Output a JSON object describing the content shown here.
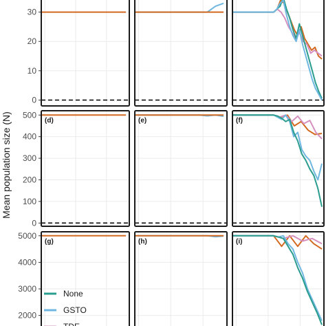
{
  "chart_data": {
    "type": "line",
    "ylabel": "Mean population size (N)",
    "reference_line": 0,
    "legend": {
      "placement": "bottom-left",
      "entries": [
        {
          "name": "None",
          "color": "#2a9d8f"
        },
        {
          "name": "GSTO",
          "color": "#6fb7e0"
        },
        {
          "name": "TDE",
          "color": "#d58fbf"
        }
      ]
    },
    "colors": {
      "None": "#2a9d8f",
      "GSTO": "#6fb7e0",
      "TDE": "#d58fbf",
      "Other": "#d2691e",
      "reference": "#000000",
      "grid": "#ebebeb"
    },
    "rows": [
      {
        "ylim": [
          -2,
          36
        ],
        "yticks": [
          0,
          10,
          20,
          30
        ],
        "panels": [
          {
            "label": "",
            "series": [
              {
                "name": "",
                "color": "#d2691e",
                "values": [
                  30,
                  30,
                  30,
                  30,
                  30,
                  30,
                  30,
                  30,
                  30,
                  30,
                  30,
                  30
                ]
              }
            ]
          },
          {
            "label": "",
            "series": [
              {
                "name": "GSTO",
                "color": "#6fb7e0",
                "values": [
                  30,
                  30,
                  30,
                  30,
                  30,
                  30,
                  30,
                  30,
                  30,
                  30,
                  32,
                  33
                ]
              },
              {
                "name": "",
                "color": "#d2691e",
                "values": [
                  30,
                  30,
                  30,
                  30,
                  30,
                  30,
                  30,
                  30,
                  30,
                  30,
                  30,
                  30
                ]
              }
            ]
          },
          {
            "label": "",
            "series": [
              {
                "name": "",
                "color": "#d2691e",
                "values": [
                  30,
                  30,
                  30,
                  30,
                  30,
                  30,
                  31,
                  34,
                  33,
                  30,
                  27,
                  24,
                  22,
                  25,
                  21,
                  19,
                  17,
                  18,
                  15,
                  14
                ]
              },
              {
                "name": "TDE",
                "color": "#d58fbf",
                "values": [
                  30,
                  30,
                  30,
                  30,
                  30,
                  30,
                  30,
                  31,
                  30,
                  28,
                  25,
                  23,
                  21,
                  23,
                  20,
                  19,
                  16,
                  17,
                  16,
                  15
                ]
              },
              {
                "name": "None",
                "color": "#2a9d8f",
                "values": [
                  30,
                  30,
                  30,
                  30,
                  30,
                  31,
                  32,
                  35,
                  31,
                  28,
                  24,
                  21,
                  26,
                  22,
                  18,
                  14,
                  10,
                  6,
                  3,
                  0.5
                ]
              },
              {
                "name": "GSTO",
                "color": "#6fb7e0",
                "values": [
                  30,
                  30,
                  30,
                  30,
                  30,
                  31,
                  33,
                  34,
                  29,
                  25,
                  22,
                  20,
                  24,
                  19,
                  15,
                  11,
                  7,
                  4,
                  2,
                  0
                ]
              }
            ]
          }
        ]
      },
      {
        "ylim": [
          -15,
          520
        ],
        "yticks": [
          0,
          100,
          200,
          300,
          400,
          500
        ],
        "panels": [
          {
            "label": "(d)",
            "series": [
              {
                "name": "",
                "color": "#d2691e",
                "values": [
                  500,
                  500,
                  500,
                  500,
                  500,
                  500,
                  500,
                  500,
                  500,
                  500,
                  500,
                  500
                ]
              }
            ]
          },
          {
            "label": "(e)",
            "series": [
              {
                "name": "GSTO",
                "color": "#6fb7e0",
                "values": [
                  500,
                  500,
                  500,
                  500,
                  500,
                  500,
                  500,
                  500,
                  500,
                  496,
                  500,
                  494
                ]
              },
              {
                "name": "",
                "color": "#d2691e",
                "values": [
                  500,
                  500,
                  500,
                  500,
                  500,
                  500,
                  500,
                  500,
                  500,
                  500,
                  500,
                  500
                ]
              }
            ]
          },
          {
            "label": "(f)",
            "series": [
              {
                "name": "",
                "color": "#d2691e",
                "values": [
                  500,
                  500,
                  500,
                  500,
                  500,
                  500,
                  500,
                  500,
                  500,
                  500,
                  500,
                  500,
                  500,
                  500,
                  490,
                  500,
                  450,
                  470,
                  430,
                  410,
                  415
                ]
              },
              {
                "name": "TDE",
                "color": "#d58fbf",
                "values": [
                  500,
                  500,
                  500,
                  500,
                  500,
                  500,
                  500,
                  500,
                  500,
                  500,
                  500,
                  500,
                  500,
                  490,
                  500,
                  470,
                  495,
                  460,
                  475,
                  420,
                  390
                ]
              },
              {
                "name": "GSTO",
                "color": "#6fb7e0",
                "values": [
                  500,
                  500,
                  500,
                  500,
                  500,
                  500,
                  500,
                  500,
                  500,
                  500,
                  500,
                  490,
                  480,
                  500,
                  470,
                  400,
                  420,
                  340,
                  310,
                  290,
                  240,
                  200,
                  275
                ]
              },
              {
                "name": "None",
                "color": "#2a9d8f",
                "values": [
                  500,
                  500,
                  500,
                  500,
                  500,
                  500,
                  500,
                  500,
                  500,
                  500,
                  500,
                  495,
                  485,
                  470,
                  480,
                  420,
                  380,
                  320,
                  290,
                  250,
                  220,
                  160,
                  75
                ]
              }
            ]
          }
        ]
      },
      {
        "ylim": [
          1500,
          5150
        ],
        "yticks": [
          2000,
          3000,
          4000,
          5000
        ],
        "panels": [
          {
            "label": "(g)",
            "series": [
              {
                "name": "",
                "color": "#d2691e",
                "values": [
                  5000,
                  5000,
                  5000,
                  5000,
                  5000,
                  5000,
                  5000,
                  5000,
                  5000,
                  5000,
                  5000,
                  5000
                ]
              }
            ]
          },
          {
            "label": "(h)",
            "series": [
              {
                "name": "GSTO",
                "color": "#6fb7e0",
                "values": [
                  5000,
                  5000,
                  5000,
                  5000,
                  5000,
                  5000,
                  5000,
                  5000,
                  5000,
                  5000,
                  4960,
                  4990
                ]
              },
              {
                "name": "",
                "color": "#d2691e",
                "values": [
                  5000,
                  5000,
                  5000,
                  5000,
                  5000,
                  5000,
                  5000,
                  5000,
                  5000,
                  5000,
                  5000,
                  5000
                ]
              }
            ]
          },
          {
            "label": "(i)",
            "series": [
              {
                "name": "",
                "color": "#d2691e",
                "values": [
                  5000,
                  5000,
                  5000,
                  5000,
                  5000,
                  5000,
                  5000,
                  5000,
                  5000,
                  5000,
                  5000,
                  5000,
                  5000,
                  5000,
                  5000,
                  4600,
                  5000,
                  4600,
                  5000,
                  4700,
                  4500
                ]
              },
              {
                "name": "TDE",
                "color": "#d58fbf",
                "values": [
                  5000,
                  5000,
                  5000,
                  5000,
                  5000,
                  5000,
                  5000,
                  5000,
                  5000,
                  5000,
                  5000,
                  5000,
                  5000,
                  5000,
                  5000,
                  5000,
                  4900,
                  5000,
                  4800,
                  4900,
                  4700
                ]
              },
              {
                "name": "GSTO",
                "color": "#6fb7e0",
                "values": [
                  5000,
                  5000,
                  5000,
                  5000,
                  5000,
                  5000,
                  5000,
                  5000,
                  5000,
                  5000,
                  5000,
                  5000,
                  5000,
                  4950,
                  5000,
                  4700,
                  4500,
                  4000,
                  3600,
                  3000,
                  2600,
                  2200,
                  1800
                ]
              },
              {
                "name": "None",
                "color": "#2a9d8f",
                "values": [
                  5000,
                  5000,
                  5000,
                  5000,
                  5000,
                  5000,
                  5000,
                  5000,
                  5000,
                  5000,
                  5000,
                  5000,
                  5000,
                  4950,
                  4900,
                  4600,
                  4300,
                  3800,
                  3400,
                  2900,
                  2500,
                  2100,
                  1650
                ]
              }
            ]
          }
        ]
      }
    ]
  }
}
